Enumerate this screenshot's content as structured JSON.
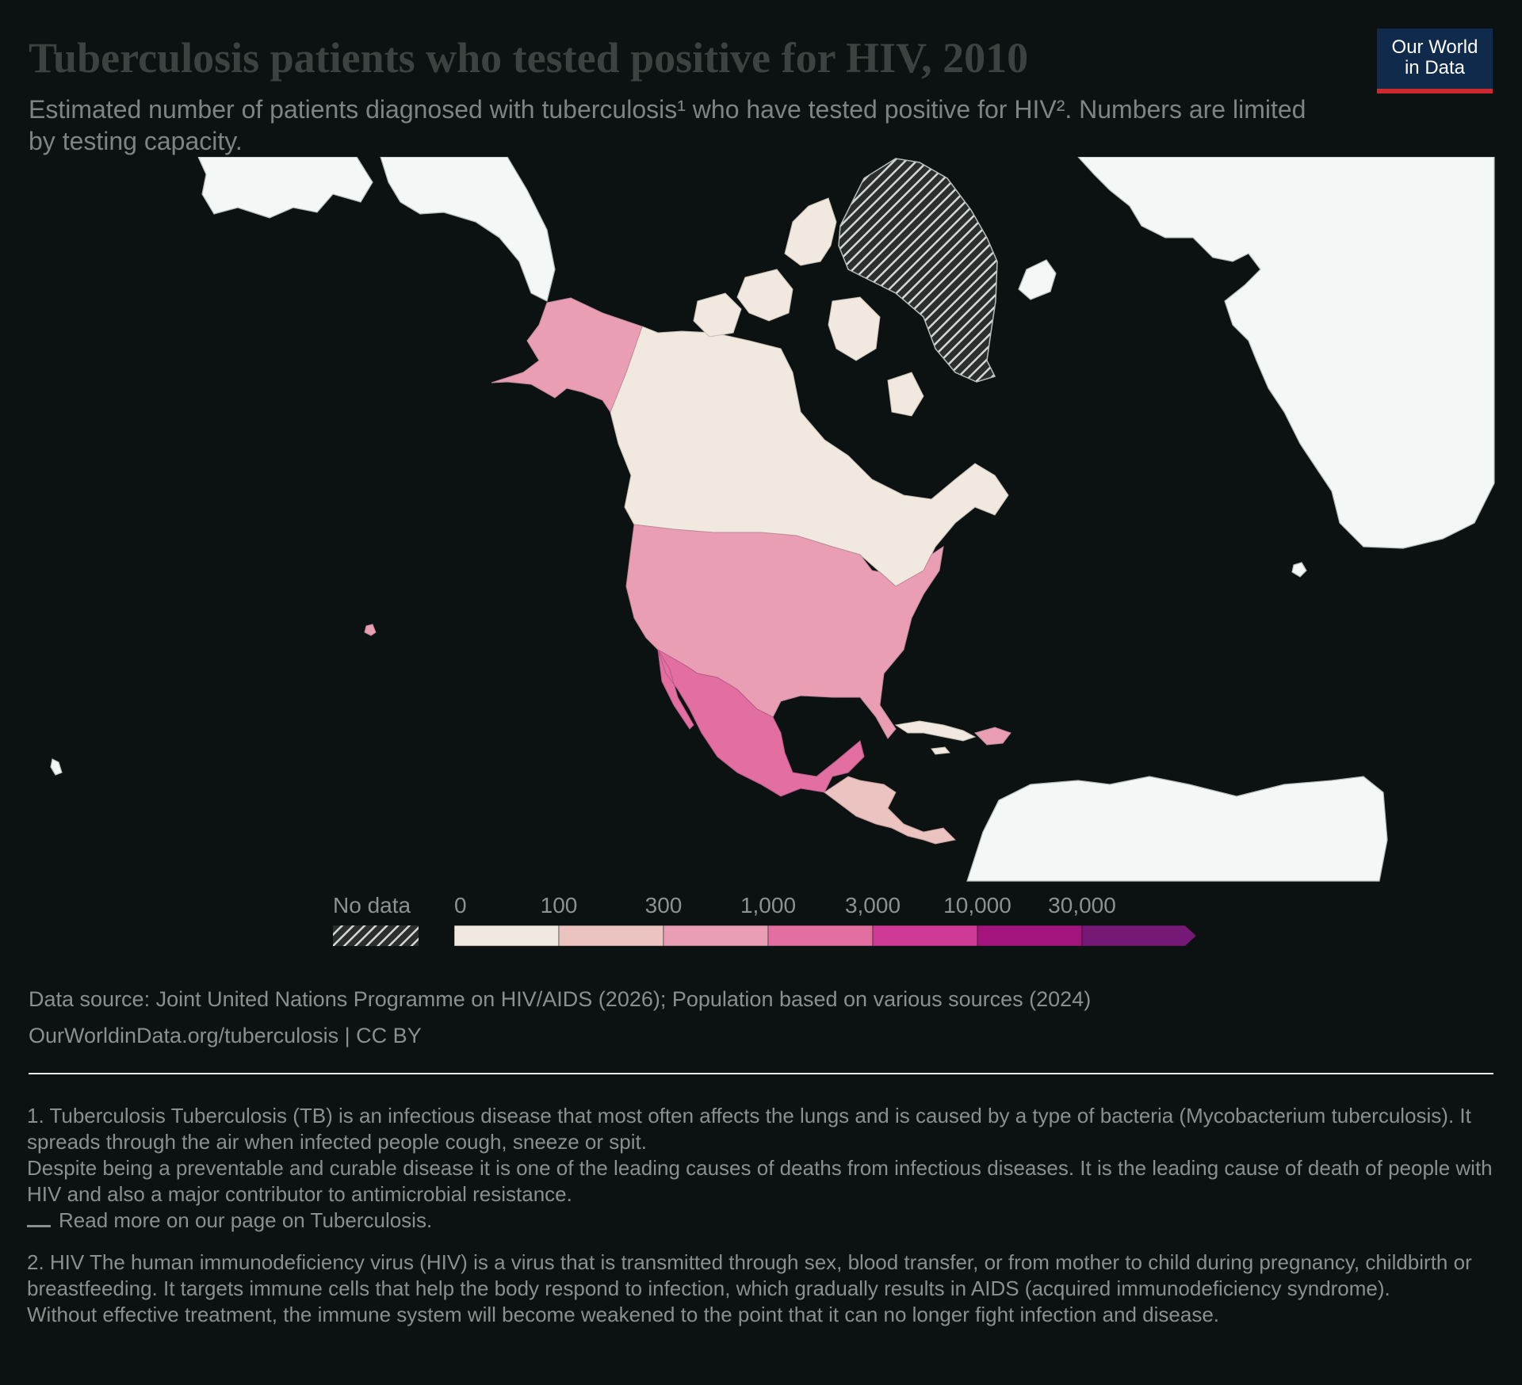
{
  "header": {
    "title": "Tuberculosis patients who tested positive for HIV, 2010",
    "subtitle": "Estimated number of patients diagnosed with tuberculosis¹ who have tested positive for HIV². Numbers are limited by testing capacity.",
    "logo_line1": "Our World",
    "logo_line2": "in Data"
  },
  "legend": {
    "no_data_label": "No data",
    "bins": [
      {
        "label": "0",
        "color": "#f1e9df"
      },
      {
        "label": "100",
        "color": "#ebc3c0"
      },
      {
        "label": "300",
        "color": "#e99eb4"
      },
      {
        "label": "1,000",
        "color": "#e26f9f"
      },
      {
        "label": "3,000",
        "color": "#cf3a97"
      },
      {
        "label": "10,000",
        "color": "#a3147d"
      },
      {
        "label": "30,000",
        "color": "#761875"
      }
    ]
  },
  "colors": {
    "no_data_fill": "#f3f8f6",
    "canada": "#f1e9df",
    "united_states": "#e99eb4",
    "mexico": "#e26f9f",
    "central_america": "#ebc3c0",
    "caribbean_low": "#f1e9df",
    "hatched_greenland": "#d4d8d7"
  },
  "footer": {
    "source": "Data source: Joint United Nations Programme on HIV/AIDS (2026); Population based on various sources (2024)",
    "url": "OurWorldinData.org/tuberculosis | CC BY"
  },
  "notes": {
    "note1_line1": "1. Tuberculosis Tuberculosis (TB) is an infectious disease that most often affects the lungs and is caused by a type of bacteria (Mycobacterium tuberculosis). It spreads through the air when infected people cough, sneeze or spit.",
    "note1_line2": "Despite being a preventable and curable disease it is one of the leading causes of deaths from infectious diseases. It is the leading cause of death of people with HIV and also a major contributor to antimicrobial resistance.",
    "note1_link": "Read more on our page on Tuberculosis.",
    "note2_line1": "2. HIV The human immunodeficiency virus (HIV) is a virus that is transmitted through sex, blood transfer, or from mother to child during pregnancy, childbirth or breastfeeding. It targets immune cells that help the body respond to infection, which gradually results in AIDS (acquired immunodeficiency syndrome).",
    "note2_line2": "Without effective treatment, the immune system will become weakened to the point that it can no longer fight infection and disease."
  }
}
